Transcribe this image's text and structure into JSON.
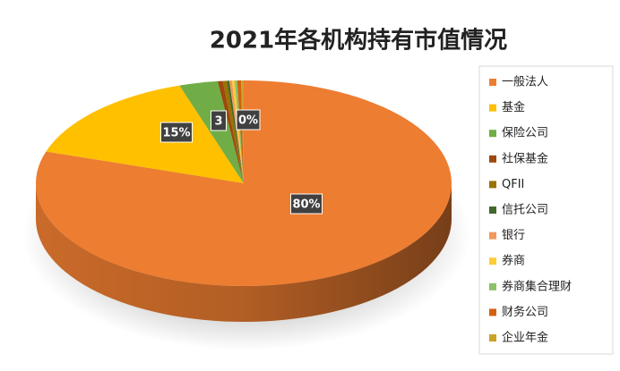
{
  "chart_data": {
    "type": "pie3d",
    "title": "2021年各机构持有市值情况",
    "categories": [
      "一般法人",
      "基金",
      "保险公司",
      "社保基金",
      "QFII",
      "信托公司",
      "银行",
      "券商",
      "券商集合理财",
      "财务公司",
      "企业年金"
    ],
    "values": [
      80,
      15,
      3,
      0.4,
      0.3,
      0.2,
      0.2,
      0.2,
      0.2,
      0.3,
      0.2
    ],
    "value_labels": [
      "80%",
      "15%",
      "3",
      "0%",
      null,
      null,
      null,
      null,
      null,
      null,
      null
    ],
    "colors": [
      "#ed7d31",
      "#ffc000",
      "#70ad47",
      "#9e480e",
      "#997300",
      "#43682b",
      "#f1975a",
      "#ffcd33",
      "#8cc168",
      "#d26012",
      "#c9a227"
    ],
    "legend": "right"
  }
}
